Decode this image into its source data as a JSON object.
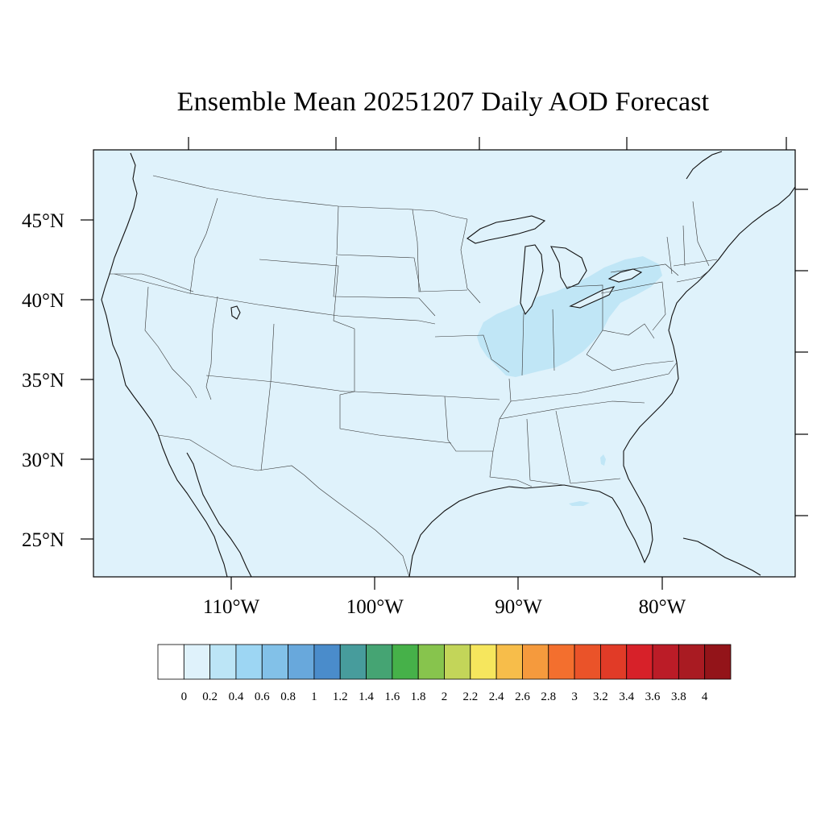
{
  "title": "Ensemble Mean 20251207 Daily AOD Forecast",
  "lat_labels": [
    {
      "lat": 45,
      "label": "45°N"
    },
    {
      "lat": 40,
      "label": "40°N"
    },
    {
      "lat": 35,
      "label": "35°N"
    },
    {
      "lat": 30,
      "label": "30°N"
    },
    {
      "lat": 25,
      "label": "25°N"
    }
  ],
  "lon_labels": [
    {
      "lon": -110,
      "label": "110°W"
    },
    {
      "lon": -100,
      "label": "100°W"
    },
    {
      "lon": -90,
      "label": "90°W"
    },
    {
      "lon": -80,
      "label": "80°W"
    }
  ],
  "colors": {
    "background_aod": "#dff2fb",
    "plume_aod": "#c0e6f6"
  },
  "colorbar": {
    "levels": [
      "0",
      "0.2",
      "0.4",
      "0.6",
      "0.8",
      "1",
      "1.2",
      "1.4",
      "1.6",
      "1.8",
      "2",
      "2.2",
      "2.4",
      "2.6",
      "2.8",
      "3",
      "3.2",
      "3.4",
      "3.6",
      "3.8",
      "4"
    ],
    "colors": [
      "#ffffff",
      "#dff2fb",
      "#bce5f6",
      "#9dd6f3",
      "#82c1e8",
      "#68a8dc",
      "#4a8ccb",
      "#479c9c",
      "#45a473",
      "#46b149",
      "#87c44d",
      "#c3d559",
      "#f6e65d",
      "#f7bd4a",
      "#f59a3d",
      "#f36f2e",
      "#ea5329",
      "#e13b27",
      "#d72129",
      "#bb1c27",
      "#a91b22",
      "#931419"
    ]
  }
}
